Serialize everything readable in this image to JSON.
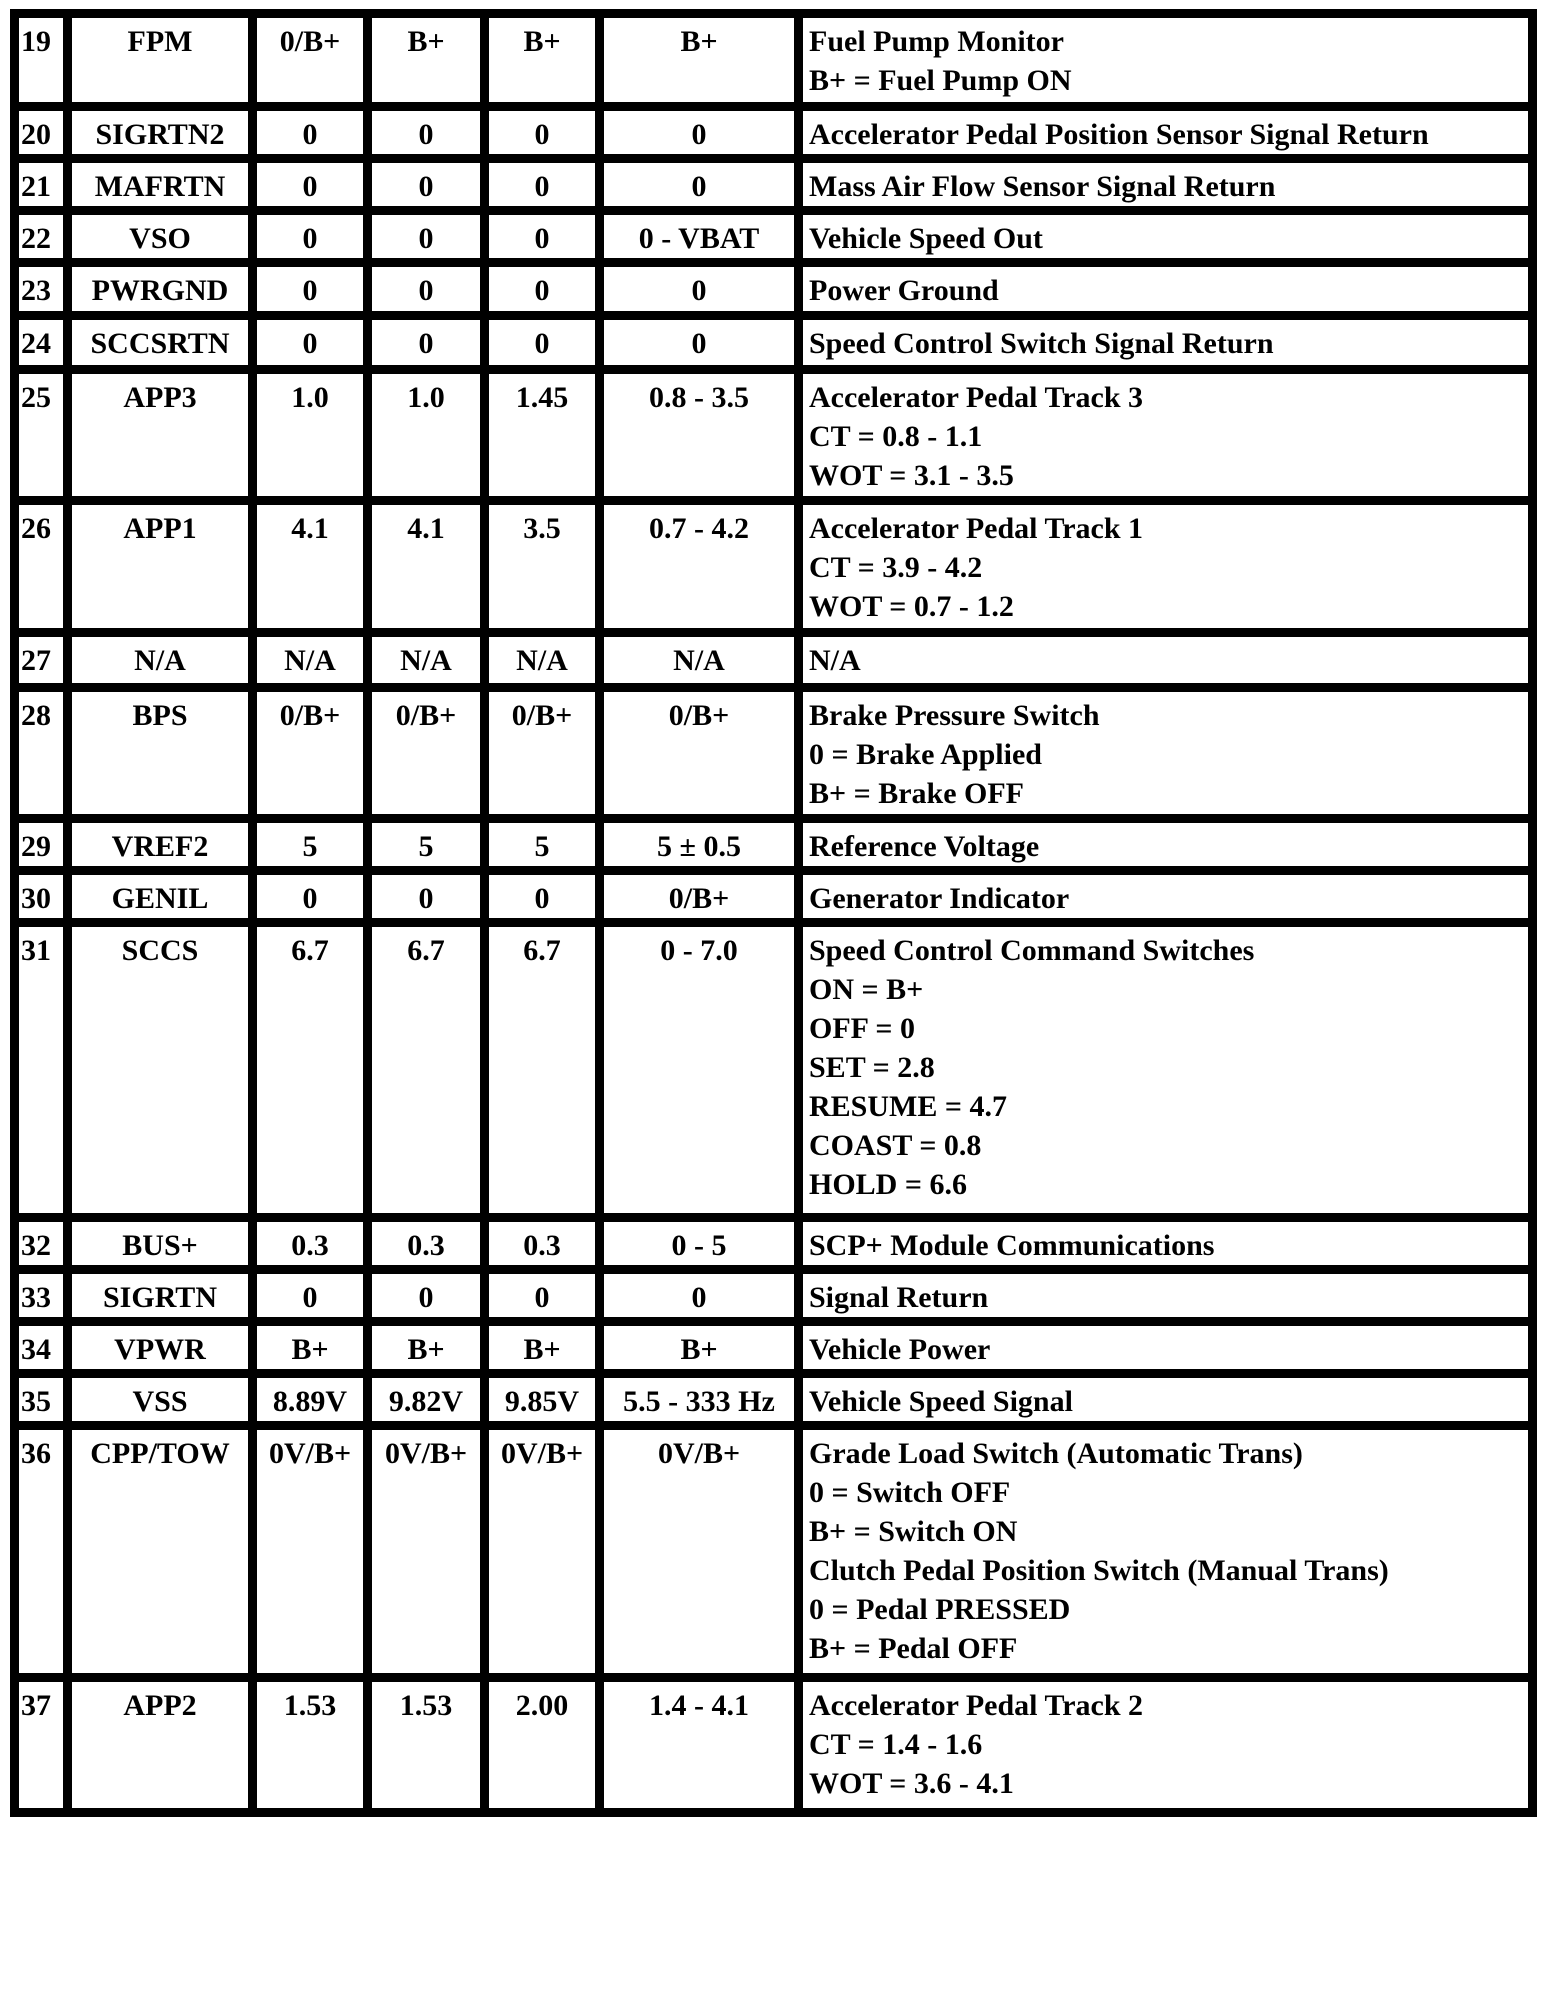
{
  "rows": [
    {
      "pin": "19",
      "name": "FPM",
      "v1": "0/B+",
      "v2": "B+",
      "v3": "B+",
      "v4": "B+",
      "desc": [
        "Fuel Pump Monitor",
        "B+ = Fuel Pump ON"
      ]
    },
    {
      "pin": "20",
      "name": "SIGRTN2",
      "v1": "0",
      "v2": "0",
      "v3": "0",
      "v4": "0",
      "desc": [
        "Accelerator Pedal Position Sensor Signal Return"
      ]
    },
    {
      "pin": "21",
      "name": "MAFRTN",
      "v1": "0",
      "v2": "0",
      "v3": "0",
      "v4": "0",
      "desc": [
        "Mass Air Flow Sensor Signal Return"
      ]
    },
    {
      "pin": "22",
      "name": "VSO",
      "v1": "0",
      "v2": "0",
      "v3": "0",
      "v4": "0 - VBAT",
      "desc": [
        "Vehicle Speed Out"
      ]
    },
    {
      "pin": "23",
      "name": "PWRGND",
      "v1": "0",
      "v2": "0",
      "v3": "0",
      "v4": "0",
      "desc": [
        "Power Ground"
      ]
    },
    {
      "pin": "24",
      "name": "SCCSRTN",
      "v1": "0",
      "v2": "0",
      "v3": "0",
      "v4": "0",
      "desc": [
        "Speed Control Switch Signal Return"
      ]
    },
    {
      "pin": "25",
      "name": "APP3",
      "v1": "1.0",
      "v2": "1.0",
      "v3": "1.45",
      "v4": "0.8 - 3.5",
      "desc": [
        "Accelerator Pedal Track 3",
        "CT = 0.8 - 1.1",
        "WOT = 3.1 - 3.5"
      ]
    },
    {
      "pin": "26",
      "name": "APP1",
      "v1": "4.1",
      "v2": "4.1",
      "v3": "3.5",
      "v4": "0.7 - 4.2",
      "desc": [
        "Accelerator Pedal Track 1",
        "CT = 3.9 - 4.2",
        "WOT = 0.7 - 1.2"
      ]
    },
    {
      "pin": "27",
      "name": "N/A",
      "v1": "N/A",
      "v2": "N/A",
      "v3": "N/A",
      "v4": "N/A",
      "desc": [
        "N/A"
      ]
    },
    {
      "pin": "28",
      "name": "BPS",
      "v1": "0/B+",
      "v2": "0/B+",
      "v3": "0/B+",
      "v4": "0/B+",
      "desc": [
        "Brake Pressure Switch",
        "0 = Brake Applied",
        "B+ = Brake OFF"
      ]
    },
    {
      "pin": "29",
      "name": "VREF2",
      "v1": "5",
      "v2": "5",
      "v3": "5",
      "v4": "5 ± 0.5",
      "desc": [
        "Reference Voltage"
      ]
    },
    {
      "pin": "30",
      "name": "GENIL",
      "v1": "0",
      "v2": "0",
      "v3": "0",
      "v4": "0/B+",
      "desc": [
        "Generator Indicator"
      ]
    },
    {
      "pin": "31",
      "name": "SCCS",
      "v1": "6.7",
      "v2": "6.7",
      "v3": "6.7",
      "v4": "0 - 7.0",
      "desc": [
        "Speed Control Command Switches",
        "ON = B+",
        "OFF = 0",
        "SET = 2.8",
        "RESUME = 4.7",
        "COAST = 0.8",
        "HOLD = 6.6"
      ]
    },
    {
      "pin": "32",
      "name": "BUS+",
      "v1": "0.3",
      "v2": "0.3",
      "v3": "0.3",
      "v4": "0 - 5",
      "desc": [
        "SCP+ Module Communications"
      ]
    },
    {
      "pin": "33",
      "name": "SIGRTN",
      "v1": "0",
      "v2": "0",
      "v3": "0",
      "v4": "0",
      "desc": [
        "Signal Return"
      ]
    },
    {
      "pin": "34",
      "name": "VPWR",
      "v1": "B+",
      "v2": "B+",
      "v3": "B+",
      "v4": "B+",
      "desc": [
        "Vehicle Power"
      ]
    },
    {
      "pin": "35",
      "name": "VSS",
      "v1": "8.89V",
      "v2": "9.82V",
      "v3": "9.85V",
      "v4": "5.5 - 333 Hz",
      "desc": [
        "Vehicle Speed Signal"
      ]
    },
    {
      "pin": "36",
      "name": "CPP/TOW",
      "v1": "0V/B+",
      "v2": "0V/B+",
      "v3": "0V/B+",
      "v4": "0V/B+",
      "desc": [
        "Grade Load Switch (Automatic Trans)",
        "0 = Switch OFF",
        "B+ = Switch ON",
        "Clutch Pedal Position Switch (Manual Trans)",
        "0 = Pedal PRESSED",
        "B+ = Pedal OFF"
      ]
    },
    {
      "pin": "37",
      "name": "APP2",
      "v1": "1.53",
      "v2": "1.53",
      "v3": "2.00",
      "v4": "1.4 - 4.1",
      "desc": [
        "Accelerator Pedal Track 2",
        "CT = 1.4 - 1.6",
        "WOT = 3.6 - 4.1"
      ]
    }
  ]
}
